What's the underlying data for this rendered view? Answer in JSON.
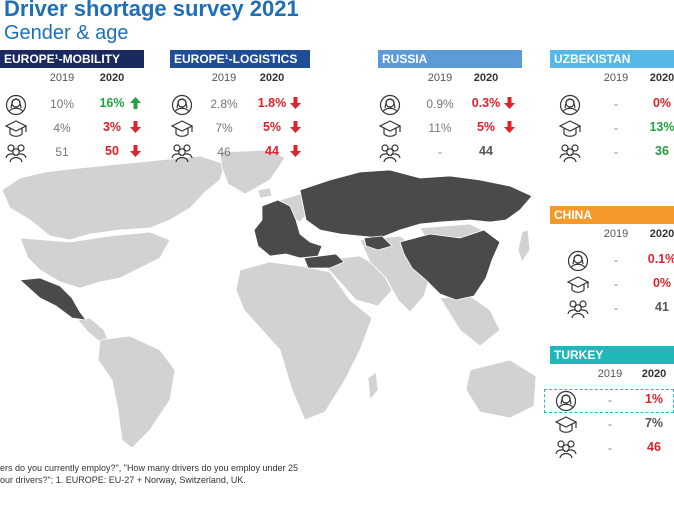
{
  "title": "Driver shortage survey 2021",
  "subtitle": "Gender & age",
  "year_labels": {
    "y2019": "2019",
    "y2020": "2020"
  },
  "metric_icons": [
    "female-driver-icon",
    "graduation-cap-icon",
    "group-icon"
  ],
  "colors": {
    "title": "#1f6fb8",
    "highlight_country": "#4a4a4a",
    "other_country": "#d2d2d2",
    "up": "#23a042",
    "down": "#e0202a"
  },
  "panels": {
    "europe_mobility": {
      "title": "EUROPE¹-MOBILITY",
      "color": "#1b2a5e",
      "rows": [
        {
          "v2019": "10%",
          "v2020": "16%",
          "trend": "up"
        },
        {
          "v2019": "4%",
          "v2020": "3%",
          "trend": "down"
        },
        {
          "v2019": "51",
          "v2020": "50",
          "trend": "down"
        }
      ]
    },
    "europe_logistics": {
      "title": "EUROPE¹-LOGISTICS",
      "color": "#1f4e96",
      "rows": [
        {
          "v2019": "2.8%",
          "v2020": "1.8%",
          "trend": "down"
        },
        {
          "v2019": "7%",
          "v2020": "5%",
          "trend": "down"
        },
        {
          "v2019": "46",
          "v2020": "44",
          "trend": "down"
        }
      ]
    },
    "russia": {
      "title": "RUSSIA",
      "color": "#5c9ad8",
      "rows": [
        {
          "v2019": "0.9%",
          "v2020": "0.3%",
          "trend": "down"
        },
        {
          "v2019": "11%",
          "v2020": "5%",
          "trend": "down"
        },
        {
          "v2019": "-",
          "v2020": "44",
          "trend": "none"
        }
      ]
    },
    "uzbekistan": {
      "title": "UZBEKISTAN",
      "color": "#55b8e6",
      "rows": [
        {
          "v2019": "-",
          "v2020": "0%",
          "trend": "none"
        },
        {
          "v2019": "-",
          "v2020": "13%",
          "trend": "none"
        },
        {
          "v2019": "-",
          "v2020": "36",
          "trend": "none"
        }
      ]
    },
    "china": {
      "title": "CHINA",
      "color": "#f59a2a",
      "rows": [
        {
          "v2019": "-",
          "v2020": "0.1%",
          "trend": "none"
        },
        {
          "v2019": "-",
          "v2020": "0%",
          "trend": "none"
        },
        {
          "v2019": "-",
          "v2020": "41",
          "trend": "none"
        }
      ]
    },
    "turkey": {
      "title": "TURKEY",
      "color": "#1fb7b7",
      "rows": [
        {
          "v2019": "-",
          "v2020": "1%",
          "trend": "none"
        },
        {
          "v2019": "-",
          "v2020": "7%",
          "trend": "none"
        },
        {
          "v2019": "-",
          "v2020": "46",
          "trend": "none"
        }
      ]
    }
  },
  "footnote": {
    "line1": "ers do you currently employ?\", \"How many drivers do you employ under 25",
    "line2": "our drivers?\"; 1. EUROPE: EU-27 + Norway, Switzerland, UK."
  }
}
